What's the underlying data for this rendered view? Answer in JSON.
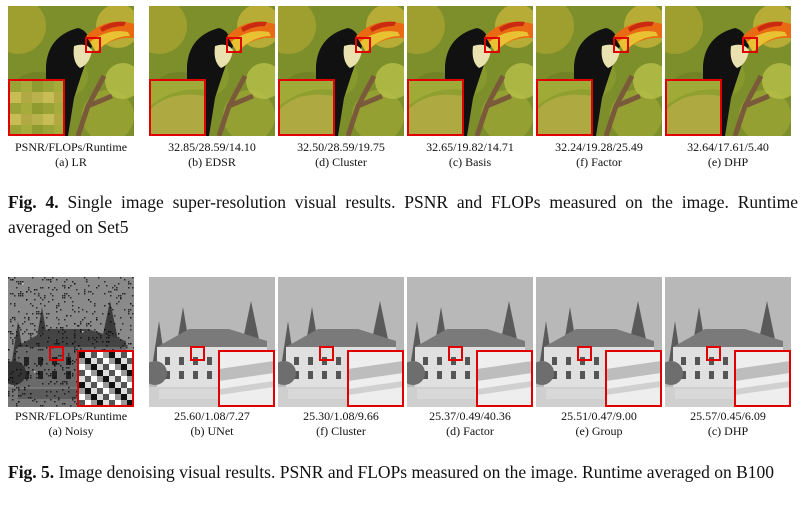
{
  "figure4": {
    "panels": [
      {
        "metric": "PSNR/FLOPs/Runtime",
        "label": "(a) LR"
      },
      {
        "metric": "32.85/28.59/14.10",
        "label": "(b) EDSR"
      },
      {
        "metric": "32.50/28.59/19.75",
        "label": "(d) Cluster"
      },
      {
        "metric": "32.65/19.82/14.71",
        "label": "(c) Basis"
      },
      {
        "metric": "32.24/19.28/25.49",
        "label": "(f) Factor"
      },
      {
        "metric": "32.64/17.61/5.40",
        "label": "(e) DHP"
      }
    ],
    "caption_label": "Fig. 4.",
    "caption_text": "Single image super-resolution visual results. PSNR and FLOPs measured on the image. Runtime averaged on Set5"
  },
  "figure5": {
    "panels": [
      {
        "metric": "PSNR/FLOPs/Runtime",
        "label": "(a) Noisy"
      },
      {
        "metric": "25.60/1.08/7.27",
        "label": "(b) UNet"
      },
      {
        "metric": "25.30/1.08/9.66",
        "label": "(f) Cluster"
      },
      {
        "metric": "25.37/0.49/40.36",
        "label": "(d) Factor"
      },
      {
        "metric": "25.51/0.47/9.00",
        "label": "(e) Group"
      },
      {
        "metric": "25.57/0.45/6.09",
        "label": "(c) DHP"
      }
    ],
    "caption_label": "Fig. 5.",
    "caption_text": "Image denoising visual results. PSNR and FLOPs measured on the image. Runtime averaged on B100"
  },
  "colors": {
    "highlight_box": "#e00000"
  }
}
